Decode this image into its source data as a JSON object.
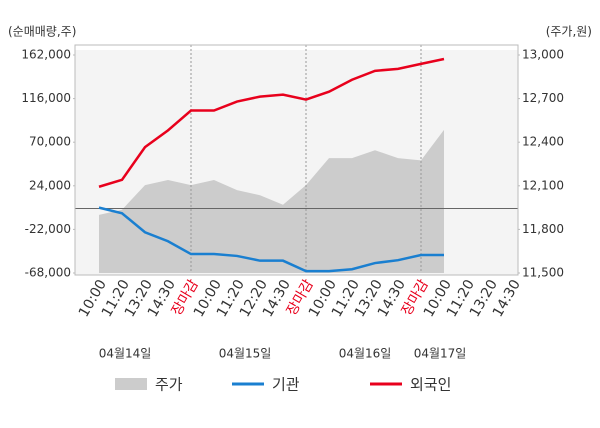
{
  "chart_data": {
    "type": "line",
    "y_label": "(순매매량,주)",
    "y2_label": "(주가,원)",
    "categories": [
      "10:00",
      "11:20",
      "13:20",
      "14:30",
      "장마감",
      "10:00",
      "11:20",
      "12:20",
      "14:30",
      "장마감",
      "10:00",
      "11:20",
      "13:20",
      "14:30",
      "장마감",
      "10:00",
      "11:20",
      "13:20",
      "14:30"
    ],
    "dates": [
      "04월14일",
      "04월15일",
      "04월16일",
      "04월17일"
    ],
    "ylim": [
      -68000,
      162000
    ],
    "yticks": [
      {
        "value": 162000,
        "label": "162,000"
      },
      {
        "value": 116000,
        "label": "116,000"
      },
      {
        "value": 70000,
        "label": "70,000"
      },
      {
        "value": 24000,
        "label": "24,000"
      },
      {
        "value": -22000,
        "label": "-22,000"
      },
      {
        "value": -68000,
        "label": "-68,000"
      }
    ],
    "y2lim": [
      11500,
      13000
    ],
    "y2ticks": [
      {
        "value": 13000,
        "label": "13,000"
      },
      {
        "value": 12700,
        "label": "12,700"
      },
      {
        "value": 12400,
        "label": "12,400"
      },
      {
        "value": 12100,
        "label": "12,100"
      },
      {
        "value": 11800,
        "label": "11,800"
      },
      {
        "value": 11500,
        "label": "11,500"
      }
    ],
    "series": [
      {
        "name": "주가",
        "color": "#cccccc",
        "axis": "y2",
        "kind": "area",
        "values": [
          11900,
          11935,
          12105,
          12140,
          12105,
          12140,
          12070,
          12035,
          11970,
          12105,
          12290,
          12290,
          12345,
          12290,
          12275,
          12485,
          null,
          null,
          null
        ]
      },
      {
        "name": "기관",
        "color": "#1a7fd0",
        "values": [
          1000,
          -5000,
          -25000,
          -34500,
          -48000,
          -48000,
          -50000,
          -55000,
          -55000,
          -66000,
          -66000,
          -64000,
          -57500,
          -54500,
          -49000,
          -49000,
          null,
          null,
          null
        ]
      },
      {
        "name": "외국인",
        "color": "#e8001c",
        "values": [
          23000,
          30300,
          64800,
          82500,
          103400,
          103400,
          112900,
          118100,
          120200,
          115000,
          123300,
          135900,
          145300,
          147400,
          152600,
          157800,
          null,
          null,
          null
        ]
      }
    ]
  }
}
